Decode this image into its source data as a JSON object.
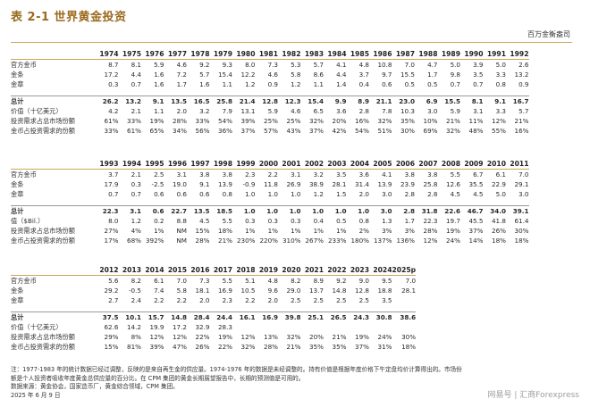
{
  "title": "表 2-1  世界黄金投资",
  "unit": "百万金衡盎司",
  "row_labels": [
    "官方金币",
    "金条",
    "金章",
    "总计",
    "价值（十亿美元）",
    "投资需求占总市场份额",
    "金币占投资需求的份额"
  ],
  "blocks": [
    {
      "years": [
        "1974",
        "1975",
        "1976",
        "1977",
        "1978",
        "1979",
        "1980",
        "1981",
        "1982",
        "1983",
        "1984",
        "1985",
        "1986",
        "1987",
        "1988",
        "1989",
        "1990",
        "1991",
        "1992"
      ],
      "labels": [
        "官方金币",
        "金条",
        "金章",
        "总计",
        "价值（十亿美元）",
        "投资需求占总市场份额",
        "金币占投资需求的份额"
      ],
      "rows": [
        [
          "8.7",
          "8.1",
          "5.9",
          "4.6",
          "9.2",
          "9.3",
          "8.0",
          "7.3",
          "5.3",
          "5.7",
          "4.1",
          "4.8",
          "10.8",
          "7.0",
          "4.7",
          "5.0",
          "3.9",
          "5.0",
          "2.6"
        ],
        [
          "17.2",
          "4.4",
          "1.6",
          "7.2",
          "5.7",
          "15.4",
          "12.2",
          "4.6",
          "5.8",
          "8.6",
          "4.4",
          "3.7",
          "9.7",
          "15.5",
          "1.7",
          "9.8",
          "3.5",
          "3.3",
          "13.2"
        ],
        [
          "0.3",
          "0.7",
          "1.6",
          "1.7",
          "1.6",
          "1.1",
          "1.2",
          "0.9",
          "1.2",
          "1.1",
          "1.4",
          "0.4",
          "0.6",
          "0.5",
          "0.5",
          "0.7",
          "0.7",
          "0.8",
          "0.9"
        ],
        [
          "26.2",
          "13.2",
          "9.1",
          "13.5",
          "16.5",
          "25.8",
          "21.4",
          "12.8",
          "12.3",
          "15.4",
          "9.9",
          "8.9",
          "21.1",
          "23.0",
          "6.9",
          "15.5",
          "8.1",
          "9.1",
          "16.7"
        ],
        [
          "4.2",
          "2.1",
          "1.1",
          "2.0",
          "3.2",
          "7.9",
          "13.1",
          "5.9",
          "4.6",
          "6.5",
          "3.6",
          "2.8",
          "7.8",
          "10.3",
          "3.0",
          "5.9",
          "3.1",
          "3.3",
          "5.7"
        ],
        [
          "61%",
          "33%",
          "19%",
          "28%",
          "33%",
          "54%",
          "39%",
          "25%",
          "25%",
          "32%",
          "20%",
          "16%",
          "32%",
          "35%",
          "10%",
          "21%",
          "11%",
          "12%",
          "21%"
        ],
        [
          "33%",
          "61%",
          "65%",
          "34%",
          "56%",
          "36%",
          "37%",
          "57%",
          "43%",
          "37%",
          "42%",
          "54%",
          "51%",
          "30%",
          "69%",
          "32%",
          "48%",
          "55%",
          "16%"
        ]
      ]
    },
    {
      "years": [
        "1993",
        "1994",
        "1995",
        "1996",
        "1997",
        "1998",
        "1999",
        "2000",
        "2001",
        "2002",
        "2003",
        "2004",
        "2005",
        "2006",
        "2007",
        "2008",
        "2009",
        "2010",
        "2011"
      ],
      "labels": [
        "官方金币",
        "金条",
        "金章",
        "总计",
        "值（$Bil.）",
        "投资需求占总市场份额",
        "金币占投资需求的份额"
      ],
      "rows": [
        [
          "3.7",
          "2.1",
          "2.5",
          "3.1",
          "3.8",
          "3.8",
          "2.3",
          "2.2",
          "3.1",
          "3.2",
          "3.5",
          "3.6",
          "4.1",
          "3.8",
          "3.8",
          "5.5",
          "6.7",
          "6.1",
          "7.0"
        ],
        [
          "17.9",
          "0.3",
          "-2.5",
          "19.0",
          "9.1",
          "13.9",
          "-0.9",
          "11.8",
          "26.9",
          "38.9",
          "28.1",
          "31.4",
          "13.9",
          "23.9",
          "25.8",
          "12.6",
          "35.5",
          "22.9",
          "29.1"
        ],
        [
          "0.7",
          "0.7",
          "0.6",
          "0.6",
          "0.6",
          "0.8",
          "1.0",
          "1.0",
          "1.0",
          "1.2",
          "1.5",
          "2.0",
          "3.0",
          "2.8",
          "2.8",
          "4.5",
          "4.5",
          "5.0",
          "3.0"
        ],
        [
          "22.3",
          "3.1",
          "0.6",
          "22.7",
          "13.5",
          "18.5",
          "1.0",
          "1.0",
          "1.0",
          "1.0",
          "1.0",
          "1.0",
          "3.0",
          "2.8",
          "31.8",
          "22.6",
          "46.7",
          "34.0",
          "39.1"
        ],
        [
          "8.0",
          "1.2",
          "0.2",
          "8.8",
          "4.5",
          "5.5",
          "0.3",
          "0.3",
          "0.3",
          "0.4",
          "0.5",
          "0.8",
          "1.3",
          "1.7",
          "22.3",
          "19.7",
          "45.5",
          "41.8",
          "61.4"
        ],
        [
          "27%",
          "4%",
          "1%",
          "NM",
          "15%",
          "18%",
          "1%",
          "1%",
          "1%",
          "1%",
          "1%",
          "2%",
          "3%",
          "3%",
          "28%",
          "19%",
          "37%",
          "26%",
          "30%"
        ],
        [
          "17%",
          "68%",
          "392%",
          "NM",
          "28%",
          "21%",
          "230%",
          "220%",
          "310%",
          "267%",
          "233%",
          "180%",
          "137%",
          "136%",
          "12%",
          "24%",
          "14%",
          "18%",
          "18%"
        ]
      ]
    },
    {
      "years": [
        "2012",
        "2013",
        "2014",
        "2015",
        "2016",
        "2017",
        "2018",
        "2019",
        "2020",
        "2021",
        "2022",
        "2023",
        "2024",
        "2025p"
      ],
      "labels": [
        "官方金币",
        "金条",
        "金章",
        "总计",
        "价值（十亿美元）",
        "投资需求占总市场份额",
        "金币占投资需求的份额"
      ],
      "rows": [
        [
          "5.6",
          "8.2",
          "6.1",
          "7.0",
          "7.3",
          "5.5",
          "5.1",
          "4.8",
          "8.2",
          "8.9",
          "9.2",
          "9.0",
          "9.5",
          "7.0"
        ],
        [
          "29.2",
          "-0.5",
          "7.4",
          "5.8",
          "18.1",
          "16.9",
          "10.5",
          "9.6",
          "29.0",
          "13.7",
          "14.8",
          "12.8",
          "18.8",
          "28.1"
        ],
        [
          "2.7",
          "2.4",
          "2.2",
          "2.2",
          "2.0",
          "2.3",
          "2.2",
          "2.0",
          "2.5",
          "2.5",
          "2.5",
          "2.5",
          "3.5",
          ""
        ],
        [
          "37.5",
          "10.1",
          "15.7",
          "14.8",
          "28.4",
          "24.4",
          "16.1",
          "16.9",
          "39.8",
          "25.1",
          "26.5",
          "24.3",
          "30.8",
          "38.6"
        ],
        [
          "62.6",
          "14.2",
          "19.9",
          "17.2",
          "32.9",
          "28.3",
          "",
          "",
          "",
          "",
          "",
          "",
          "",
          ""
        ],
        [
          "29%",
          "8%",
          "12%",
          "12%",
          "22%",
          "19%",
          "12%",
          "13%",
          "32%",
          "20%",
          "21%",
          "19%",
          "24%",
          "30%"
        ],
        [
          "15%",
          "81%",
          "39%",
          "47%",
          "26%",
          "22%",
          "32%",
          "28%",
          "21%",
          "35%",
          "35%",
          "37%",
          "31%",
          "18%"
        ]
      ]
    }
  ],
  "notes": [
    "注：1977-1983 年的统计数据已经过调整，反映的是来自再生金的供应量。1974-1976 年的数据是未经调整的。持有价值是根据年度价格下午定盘均价计算得出的。市场份",
    "额是个人投资者吸收年度黄金总供应量的百分比。在 CPM 集团的黄金长期展望报告中，长期的预测值是可用的。",
    "数据来源：黄金协会，国家造币厂，黄金综合领域，CPM 集团。",
    "2025 年 6 月 9 日"
  ],
  "watermark": "网易号 | 汇商Forexpress"
}
